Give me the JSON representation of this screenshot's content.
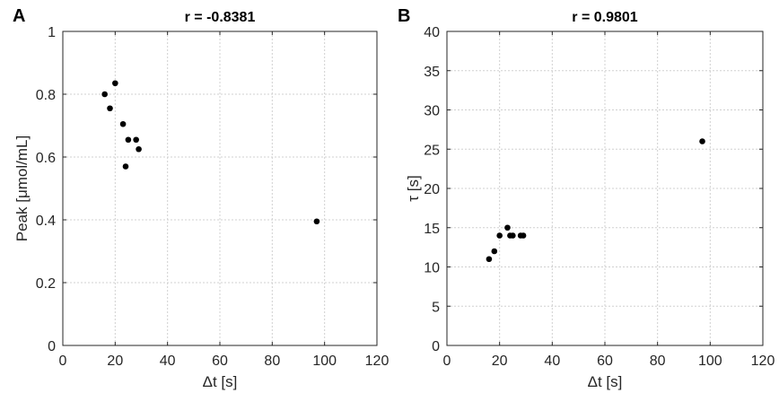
{
  "chart_data": [
    {
      "type": "scatter",
      "panel": "A",
      "title": "r = -0.8381",
      "xlabel": "Δt [s]",
      "ylabel": "Peak [μmol/mL]",
      "xlim": [
        0,
        120
      ],
      "ylim": [
        0,
        1
      ],
      "xticks": [
        0,
        20,
        40,
        60,
        80,
        100,
        120
      ],
      "yticks": [
        0,
        0.2,
        0.4,
        0.6,
        0.8,
        1
      ],
      "grid": true,
      "points": [
        {
          "x": 16,
          "y": 0.8
        },
        {
          "x": 18,
          "y": 0.755
        },
        {
          "x": 20,
          "y": 0.835
        },
        {
          "x": 23,
          "y": 0.705
        },
        {
          "x": 24,
          "y": 0.57
        },
        {
          "x": 25,
          "y": 0.655
        },
        {
          "x": 28,
          "y": 0.655
        },
        {
          "x": 29,
          "y": 0.625
        },
        {
          "x": 97,
          "y": 0.395
        }
      ]
    },
    {
      "type": "scatter",
      "panel": "B",
      "title": "r = 0.9801",
      "xlabel": "Δt [s]",
      "ylabel": "τ [s]",
      "xlim": [
        0,
        120
      ],
      "ylim": [
        0,
        40
      ],
      "xticks": [
        0,
        20,
        40,
        60,
        80,
        100,
        120
      ],
      "yticks": [
        0,
        5,
        10,
        15,
        20,
        25,
        30,
        35,
        40
      ],
      "grid": true,
      "points": [
        {
          "x": 16,
          "y": 11
        },
        {
          "x": 18,
          "y": 12
        },
        {
          "x": 20,
          "y": 14
        },
        {
          "x": 23,
          "y": 15
        },
        {
          "x": 24,
          "y": 14
        },
        {
          "x": 25,
          "y": 14
        },
        {
          "x": 28,
          "y": 14
        },
        {
          "x": 29,
          "y": 14
        },
        {
          "x": 97,
          "y": 26
        }
      ]
    }
  ]
}
